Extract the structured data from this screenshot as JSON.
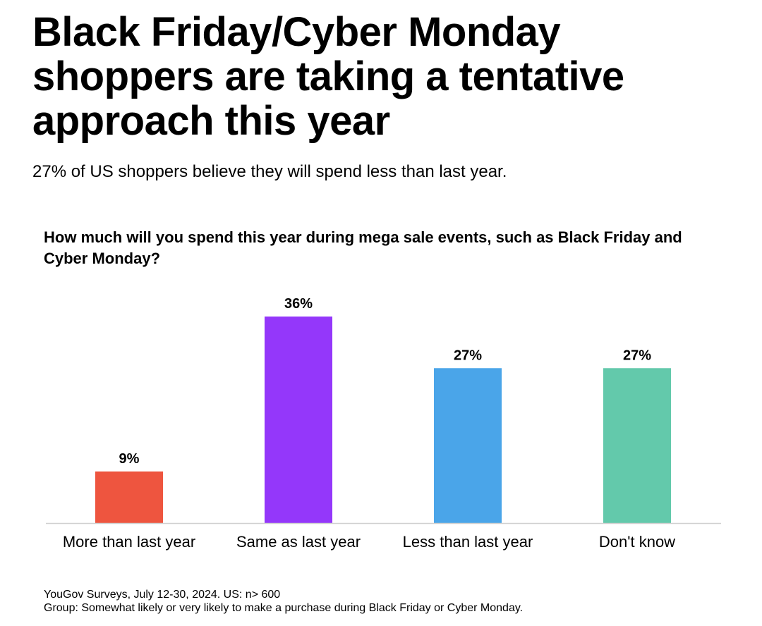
{
  "title": "Black Friday/Cyber Monday shoppers are taking a tentative approach this year",
  "subtitle": "27% of US shoppers believe they will spend less than last year.",
  "chart_data": {
    "type": "bar",
    "title": "How much will you spend this year during mega sale events, such as Black Friday and Cyber Monday?",
    "categories": [
      "More than last year",
      "Same as last year",
      "Less than last year",
      "Don't know"
    ],
    "values": [
      9,
      36,
      27,
      27
    ],
    "data_labels": [
      "9%",
      "36%",
      "27%",
      "27%"
    ],
    "colors": [
      "#EE553F",
      "#9437FA",
      "#4AA5E9",
      "#63C9AB"
    ],
    "xlabel": "",
    "ylabel": "",
    "ylim": [
      0,
      36
    ],
    "grid": false,
    "legend": "none"
  },
  "footer": {
    "source": "YouGov Surveys, July 12-30, 2024. US: n> 600",
    "group": "Group: Somewhat likely or very likely to make a purchase during Black Friday or Cyber Monday."
  }
}
